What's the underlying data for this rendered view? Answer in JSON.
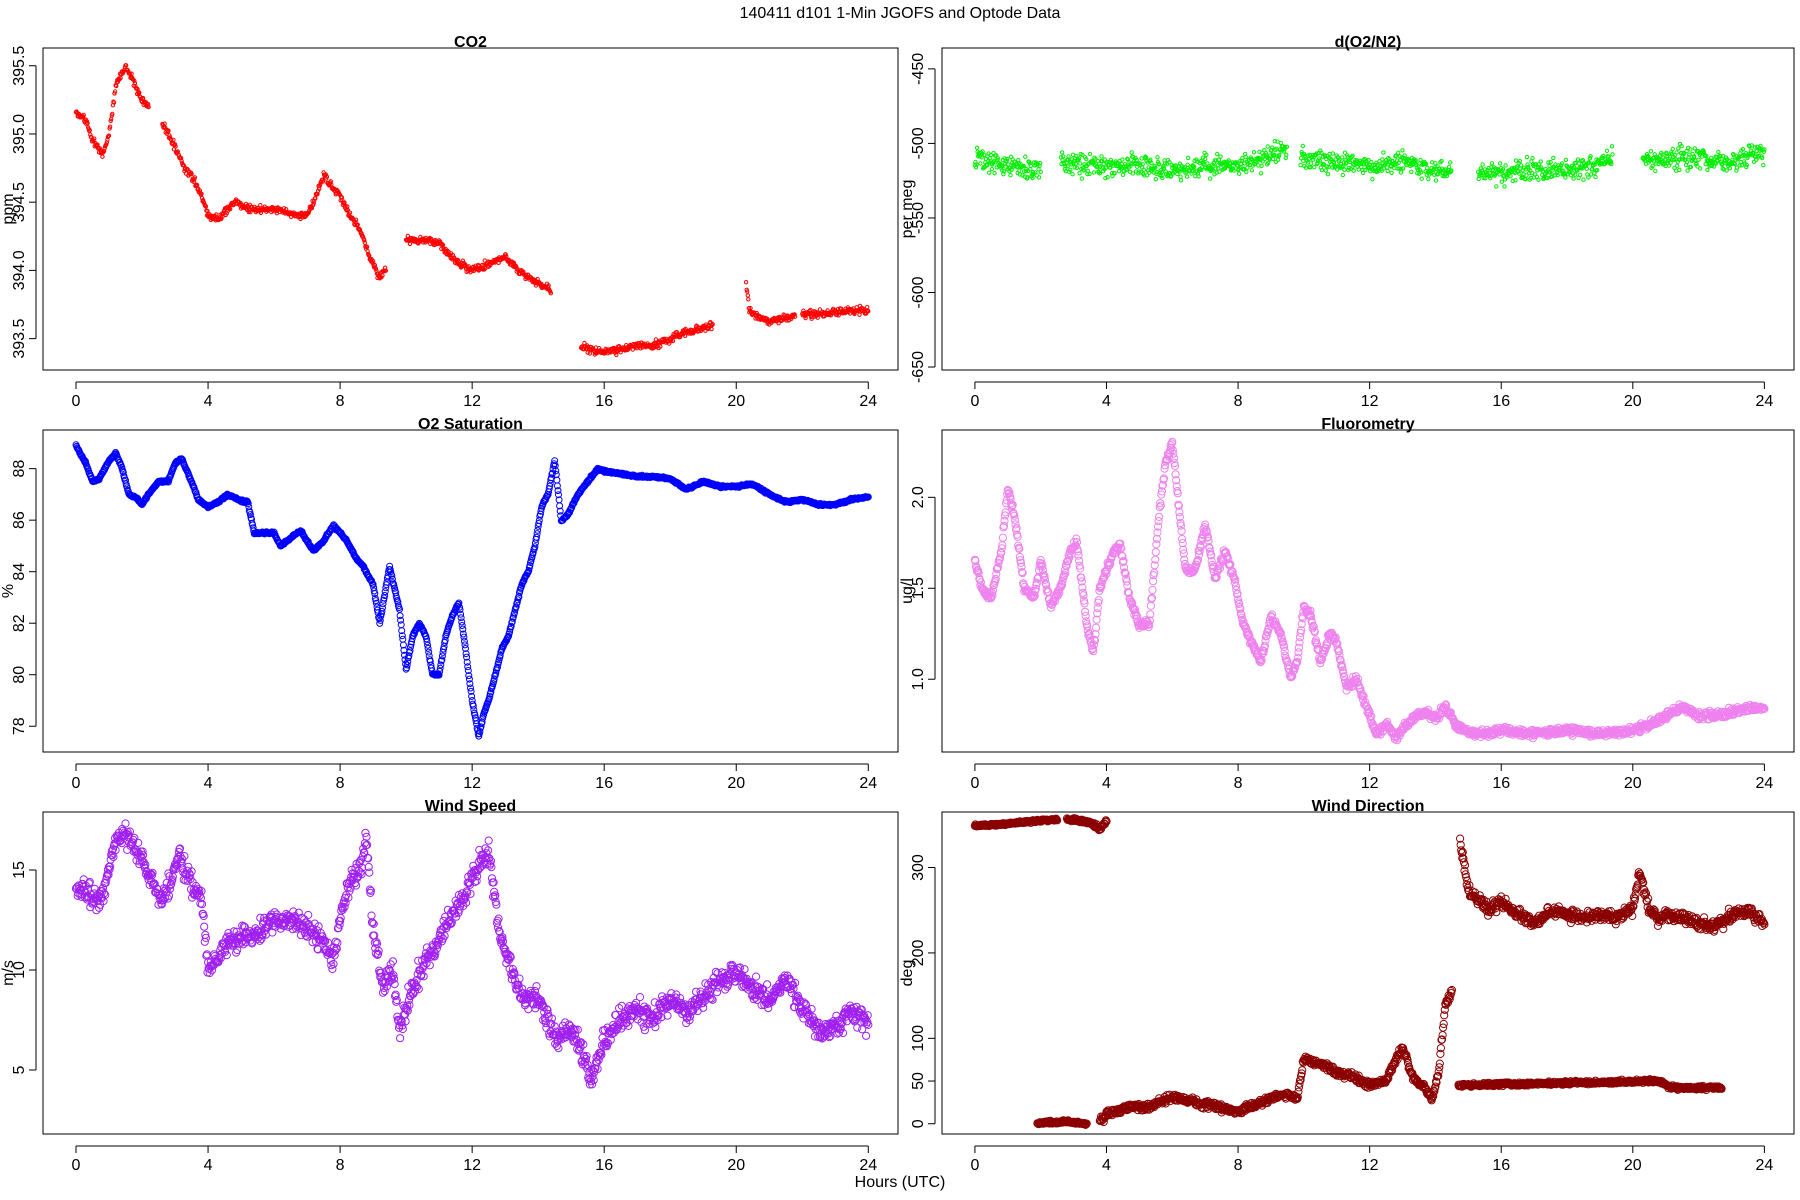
{
  "figure": {
    "title": "140411   d101   1-Min  JGOFS and Optode Data",
    "xlabel": "Hours (UTC)"
  },
  "chart_data": [
    {
      "type": "scatter",
      "title": "CO2",
      "ylabel": "ppm",
      "color": "#ff0000",
      "marker_size": "small",
      "xlim": [
        -1,
        24.9
      ],
      "ylim": [
        393.27,
        395.63
      ],
      "xticks": [
        0,
        4,
        8,
        12,
        16,
        20,
        24
      ],
      "yticks": [
        393.5,
        394.0,
        394.5,
        395.0,
        395.5
      ],
      "ytick_labels": [
        "393.5",
        "394.0",
        "394.5",
        "395.0",
        "395.5"
      ],
      "grid": false,
      "series": [
        {
          "noise": 0.04,
          "gaps": [
            [
              2.2,
              2.6
            ],
            [
              9.4,
              10.0
            ],
            [
              14.4,
              15.3
            ],
            [
              19.3,
              20.3
            ],
            [
              21.8,
              22.0
            ]
          ],
          "x": [
            0,
            0.3,
            0.5,
            0.8,
            1.0,
            1.2,
            1.5,
            1.8,
            2.0,
            2.7,
            3.0,
            3.3,
            3.6,
            3.8,
            4.0,
            4.3,
            4.8,
            5.2,
            5.6,
            6.0,
            6.5,
            7.0,
            7.2,
            7.5,
            7.8,
            8.0,
            8.3,
            8.6,
            8.9,
            9.2,
            10.0,
            10.5,
            11.0,
            11.3,
            11.6,
            12.0,
            12.5,
            13.0,
            13.4,
            13.7,
            14.0,
            14.3,
            15.3,
            15.6,
            16.0,
            16.5,
            17.0,
            17.5,
            18.0,
            18.5,
            19.0,
            19.3,
            20.3,
            20.4,
            20.7,
            21.0,
            21.5,
            21.8,
            22.0,
            22.5,
            23.0,
            23.5,
            24.0
          ],
          "y": [
            395.15,
            395.1,
            394.95,
            394.85,
            395.0,
            395.35,
            395.5,
            395.35,
            395.25,
            395.05,
            394.9,
            394.75,
            394.65,
            394.55,
            394.4,
            394.38,
            394.5,
            394.45,
            394.45,
            394.45,
            394.42,
            394.4,
            394.5,
            394.7,
            394.6,
            394.55,
            394.4,
            394.3,
            394.1,
            393.95,
            394.22,
            394.22,
            394.2,
            394.12,
            394.05,
            394.0,
            394.05,
            394.1,
            394.0,
            393.95,
            393.9,
            393.88,
            393.45,
            393.42,
            393.4,
            393.42,
            393.45,
            393.45,
            393.5,
            393.55,
            393.58,
            393.6,
            393.9,
            393.7,
            393.65,
            393.63,
            393.65,
            393.68,
            393.68,
            393.68,
            393.7,
            393.7,
            393.7
          ]
        }
      ]
    },
    {
      "type": "scatter",
      "title": "d(O2/N2)",
      "ylabel": "per meg",
      "color": "#00ee00",
      "marker_size": "small",
      "xlim": [
        -1,
        24.9
      ],
      "ylim": [
        -652,
        -436
      ],
      "xticks": [
        0,
        4,
        8,
        12,
        16,
        20,
        24
      ],
      "yticks": [
        -650,
        -600,
        -550,
        -500,
        -450
      ],
      "ytick_labels": [
        "-650",
        "-600",
        "-550",
        "-500",
        "-450"
      ],
      "grid": false,
      "series": [
        {
          "noise": 10,
          "gaps": [
            [
              2.0,
              2.6
            ],
            [
              9.5,
              9.9
            ],
            [
              14.5,
              15.3
            ],
            [
              19.4,
              20.3
            ]
          ],
          "x": [
            0,
            1,
            2,
            2.6,
            4,
            5,
            6,
            7,
            8,
            9,
            9.5,
            9.9,
            11,
            12,
            13,
            14,
            14.5,
            15.3,
            16,
            17,
            18,
            19,
            19.4,
            20.3,
            21,
            22,
            23,
            24
          ],
          "y": [
            -510,
            -515,
            -518,
            -512,
            -515,
            -515,
            -518,
            -515,
            -515,
            -508,
            -505,
            -510,
            -512,
            -515,
            -512,
            -518,
            -520,
            -520,
            -520,
            -518,
            -518,
            -515,
            -510,
            -512,
            -510,
            -510,
            -512,
            -505
          ]
        }
      ]
    },
    {
      "type": "scatter",
      "title": "O2 Saturation",
      "ylabel": "%",
      "color": "#0000ff",
      "marker_size": "medium",
      "xlim": [
        -1,
        24.9
      ],
      "ylim": [
        77.0,
        89.5
      ],
      "xticks": [
        0,
        4,
        8,
        12,
        16,
        20,
        24
      ],
      "yticks": [
        78,
        80,
        82,
        84,
        86,
        88
      ],
      "ytick_labels": [
        "78",
        "80",
        "82",
        "84",
        "86",
        "88"
      ],
      "grid": false,
      "series": [
        {
          "noise": 0.06,
          "gaps": [],
          "x": [
            0,
            0.3,
            0.5,
            0.7,
            1.0,
            1.2,
            1.4,
            1.6,
            1.8,
            2.0,
            2.2,
            2.5,
            2.8,
            3.0,
            3.2,
            3.5,
            3.7,
            4.0,
            4.3,
            4.6,
            4.9,
            5.2,
            5.4,
            5.5,
            5.7,
            6.0,
            6.2,
            6.5,
            6.8,
            7.0,
            7.2,
            7.5,
            7.8,
            8.0,
            8.2,
            8.5,
            8.7,
            9.0,
            9.2,
            9.5,
            9.8,
            10.0,
            10.2,
            10.4,
            10.6,
            10.8,
            11.0,
            11.2,
            11.4,
            11.6,
            11.8,
            12.0,
            12.2,
            12.35,
            12.5,
            12.7,
            12.9,
            13.1,
            13.3,
            13.5,
            13.7,
            13.9,
            14.1,
            14.3,
            14.5,
            14.7,
            14.9,
            15.2,
            15.5,
            15.8,
            16.0,
            16.5,
            17.0,
            17.5,
            18.0,
            18.5,
            19.0,
            19.5,
            20.0,
            20.5,
            21.0,
            21.5,
            22.0,
            22.5,
            23.0,
            23.5,
            24.0
          ],
          "y": [
            88.9,
            88.2,
            87.5,
            87.6,
            88.3,
            88.6,
            88.0,
            87.0,
            86.9,
            86.6,
            87.0,
            87.5,
            87.5,
            88.2,
            88.4,
            87.5,
            86.8,
            86.5,
            86.7,
            87.0,
            86.8,
            86.7,
            85.5,
            85.5,
            85.5,
            85.5,
            85.0,
            85.3,
            85.6,
            85.2,
            84.8,
            85.2,
            85.8,
            85.5,
            85.2,
            84.5,
            84.2,
            83.5,
            82.0,
            84.2,
            82.5,
            80.2,
            81.5,
            82.0,
            81.5,
            80.0,
            80.0,
            81.5,
            82.3,
            82.8,
            81.0,
            79.0,
            77.6,
            78.5,
            79.0,
            80.0,
            81.0,
            81.5,
            82.5,
            83.5,
            84.0,
            85.0,
            86.5,
            87.0,
            88.3,
            86.0,
            86.2,
            87.0,
            87.5,
            88.0,
            87.9,
            87.8,
            87.7,
            87.7,
            87.6,
            87.2,
            87.5,
            87.3,
            87.3,
            87.4,
            87.0,
            86.7,
            86.8,
            86.6,
            86.6,
            86.8,
            86.9
          ]
        }
      ]
    },
    {
      "type": "scatter",
      "title": "Fluorometry",
      "ylabel": "ug/l",
      "color": "#ee82ee",
      "marker_size": "large",
      "xlim": [
        -1,
        24.9
      ],
      "ylim": [
        0.6,
        2.37
      ],
      "xticks": [
        0,
        4,
        8,
        12,
        16,
        20,
        24
      ],
      "yticks": [
        1.0,
        1.5,
        2.0
      ],
      "ytick_labels": [
        "1.0",
        "1.5",
        "2.0"
      ],
      "grid": false,
      "series": [
        {
          "noise": 0.03,
          "gaps": [],
          "x": [
            0,
            0.2,
            0.5,
            0.8,
            1.0,
            1.2,
            1.5,
            1.8,
            2.0,
            2.3,
            2.6,
            2.9,
            3.1,
            3.4,
            3.6,
            3.8,
            4.0,
            4.2,
            4.4,
            4.7,
            5.0,
            5.3,
            5.6,
            5.8,
            6.0,
            6.2,
            6.4,
            6.7,
            7.0,
            7.3,
            7.6,
            7.9,
            8.1,
            8.4,
            8.7,
            9.0,
            9.3,
            9.6,
            9.8,
            10.0,
            10.2,
            10.5,
            10.8,
            11.0,
            11.3,
            11.6,
            11.9,
            12.2,
            12.5,
            12.8,
            13.1,
            13.4,
            13.7,
            14.0,
            14.3,
            14.6,
            15.0,
            15.5,
            16.0,
            17.0,
            18.0,
            19.0,
            20.0,
            20.5,
            21.0,
            21.5,
            22.0,
            22.5,
            23.0,
            23.5,
            24.0
          ],
          "y": [
            1.65,
            1.5,
            1.45,
            1.7,
            2.05,
            1.9,
            1.5,
            1.45,
            1.65,
            1.4,
            1.5,
            1.7,
            1.75,
            1.3,
            1.15,
            1.5,
            1.6,
            1.7,
            1.75,
            1.45,
            1.3,
            1.3,
            1.9,
            2.2,
            2.3,
            1.95,
            1.6,
            1.6,
            1.85,
            1.55,
            1.7,
            1.55,
            1.35,
            1.2,
            1.1,
            1.35,
            1.25,
            1.0,
            1.1,
            1.4,
            1.35,
            1.1,
            1.25,
            1.2,
            0.95,
            1.0,
            0.85,
            0.7,
            0.75,
            0.68,
            0.75,
            0.8,
            0.82,
            0.78,
            0.85,
            0.75,
            0.7,
            0.7,
            0.72,
            0.7,
            0.72,
            0.7,
            0.72,
            0.75,
            0.8,
            0.85,
            0.8,
            0.8,
            0.82,
            0.84,
            0.84
          ]
        }
      ]
    },
    {
      "type": "scatter",
      "title": "Wind Speed",
      "ylabel": "m/s",
      "color": "#a020f0",
      "marker_size": "large",
      "xlim": [
        -1,
        24.9
      ],
      "ylim": [
        1.8,
        17.9
      ],
      "xticks": [
        0,
        4,
        8,
        12,
        16,
        20,
        24
      ],
      "yticks": [
        5,
        10,
        15
      ],
      "ytick_labels": [
        "5",
        "10",
        "15"
      ],
      "grid": false,
      "series": [
        {
          "noise": 0.8,
          "gaps": [],
          "x": [
            0,
            0.3,
            0.5,
            0.8,
            1.0,
            1.2,
            1.5,
            1.8,
            2.0,
            2.3,
            2.6,
            2.9,
            3.1,
            3.3,
            3.6,
            3.8,
            4.0,
            4.3,
            4.6,
            5.0,
            5.5,
            6.0,
            6.5,
            7.0,
            7.5,
            7.8,
            8.0,
            8.3,
            8.6,
            8.8,
            9.0,
            9.3,
            9.6,
            9.8,
            10.0,
            10.3,
            10.6,
            11.0,
            11.5,
            12.0,
            12.3,
            12.5,
            12.8,
            13.0,
            13.3,
            13.6,
            14.0,
            14.3,
            14.6,
            15.0,
            15.3,
            15.6,
            16.0,
            16.5,
            17.0,
            17.5,
            18.0,
            18.5,
            19.0,
            19.5,
            20.0,
            20.5,
            21.0,
            21.5,
            22.0,
            22.5,
            23.0,
            23.5,
            24.0
          ],
          "y": [
            14.0,
            14.0,
            13.5,
            13.5,
            15.0,
            16.5,
            16.8,
            16.0,
            15.5,
            14.5,
            13.5,
            14.5,
            16.0,
            15.0,
            14.0,
            13.5,
            10.0,
            10.5,
            11.5,
            11.5,
            11.8,
            12.5,
            12.5,
            12.0,
            11.5,
            10.5,
            12.5,
            14.5,
            15.0,
            16.5,
            12.0,
            9.0,
            10.0,
            7.0,
            8.0,
            9.5,
            10.5,
            11.5,
            13.0,
            14.5,
            15.5,
            16.0,
            12.0,
            11.0,
            9.5,
            8.5,
            8.5,
            7.5,
            6.5,
            7.0,
            6.0,
            4.5,
            6.5,
            7.5,
            8.0,
            7.5,
            8.5,
            8.0,
            8.5,
            9.5,
            10.0,
            9.0,
            8.5,
            9.5,
            8.0,
            7.0,
            7.0,
            8.0,
            7.5
          ]
        }
      ]
    },
    {
      "type": "scatter",
      "title": "Wind Direction",
      "ylabel": "deg",
      "color": "#8b0000",
      "marker_size": "large",
      "xlim": [
        -1,
        24.9
      ],
      "ylim": [
        -12,
        365
      ],
      "xticks": [
        0,
        4,
        8,
        12,
        16,
        20,
        24
      ],
      "yticks": [
        0,
        50,
        100,
        200,
        300
      ],
      "ytick_labels": [
        "0",
        "50",
        "100",
        "200",
        "300"
      ],
      "grid": false,
      "series": [
        {
          "noise": 2,
          "gaps": [],
          "x": [
            0,
            0.5,
            1.0,
            1.5,
            2.0,
            2.5
          ],
          "y": [
            349,
            350,
            351,
            353,
            355,
            356
          ]
        },
        {
          "noise": 3,
          "gaps": [],
          "x": [
            2.8,
            3.2,
            3.5,
            3.8,
            4.0
          ],
          "y": [
            356,
            355,
            353,
            345,
            355
          ]
        },
        {
          "noise": 2,
          "gaps": [],
          "x": [
            1.9,
            2.2,
            2.5,
            2.8,
            3.1,
            3.4
          ],
          "y": [
            0,
            2,
            1,
            3,
            1,
            0
          ]
        },
        {
          "noise": 6,
          "gaps": [],
          "x": [
            3.8,
            4.0,
            4.3,
            4.8,
            5.2,
            5.6,
            6.0,
            6.5,
            7.0,
            7.5,
            8.0,
            8.5,
            9.0,
            9.5,
            9.8,
            10.0,
            10.5,
            11.0,
            11.5,
            12.0,
            12.5,
            12.8,
            13.0,
            13.3,
            13.6,
            13.9,
            14.1,
            14.3,
            14.5
          ],
          "y": [
            5,
            10,
            15,
            20,
            18,
            25,
            30,
            28,
            22,
            18,
            15,
            22,
            30,
            35,
            30,
            75,
            70,
            60,
            55,
            45,
            50,
            75,
            90,
            55,
            45,
            30,
            60,
            140,
            155
          ]
        },
        {
          "noise": 10,
          "gaps": [],
          "x": [
            14.75,
            15.0,
            15.3,
            15.6,
            16.0,
            16.5,
            17.0,
            17.5,
            18.0,
            18.5,
            19.0,
            19.5,
            20.0,
            20.2,
            20.5,
            20.8,
            21.0,
            21.5,
            22.0,
            22.5,
            23.0,
            23.5,
            24.0
          ],
          "y": [
            330,
            270,
            265,
            250,
            260,
            245,
            235,
            250,
            245,
            240,
            245,
            240,
            250,
            295,
            250,
            240,
            245,
            240,
            235,
            230,
            245,
            250,
            235
          ]
        },
        {
          "noise": 3,
          "gaps": [],
          "x": [
            14.7,
            20.7,
            20.9,
            21.1,
            22.7
          ],
          "y": [
            45,
            50,
            48,
            42,
            42
          ]
        }
      ]
    }
  ]
}
